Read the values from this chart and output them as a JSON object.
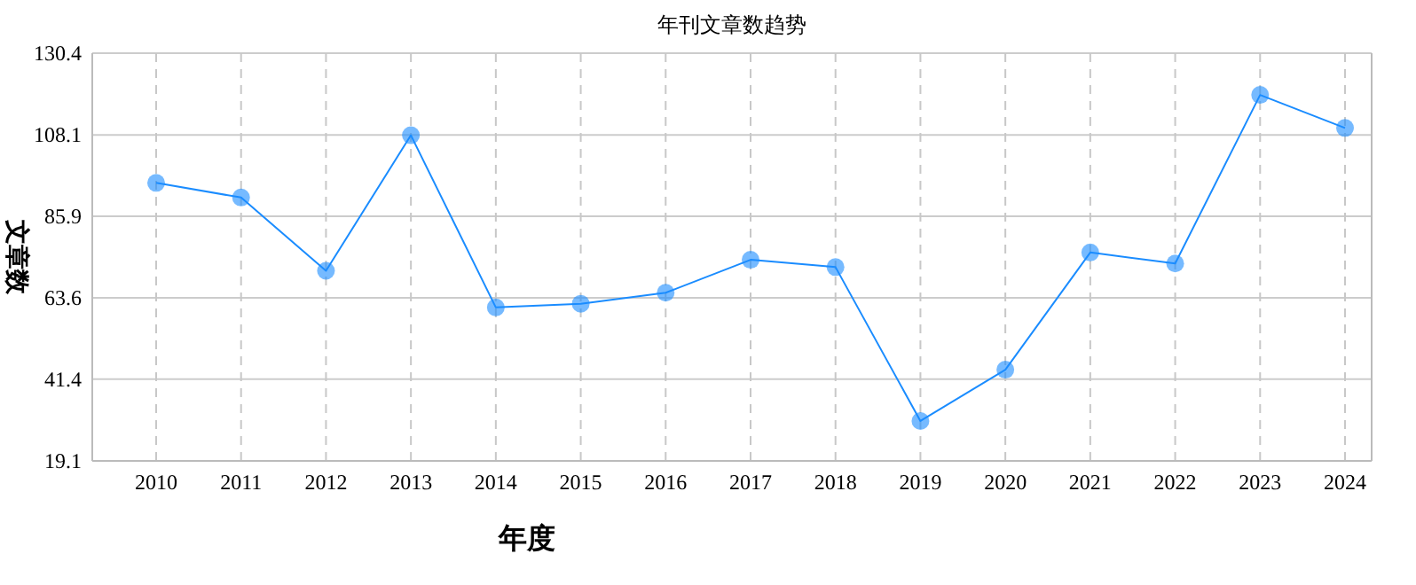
{
  "chart_data": {
    "type": "line",
    "title": "年刊文章数趋势",
    "xlabel": "年度",
    "ylabel": "文章数",
    "categories": [
      "2010",
      "2011",
      "2012",
      "2013",
      "2014",
      "2015",
      "2016",
      "2017",
      "2018",
      "2019",
      "2020",
      "2021",
      "2022",
      "2023",
      "2024"
    ],
    "series": [
      {
        "color": "#1a8cff",
        "values": [
          95,
          91,
          71,
          108,
          61,
          62,
          65,
          74,
          72,
          30,
          44,
          76,
          73,
          119,
          110
        ]
      }
    ],
    "ylim": [
      19.1,
      130.4
    ],
    "yticks": [
      19.1,
      41.4,
      63.6,
      85.9,
      108.1,
      130.4
    ],
    "grid": true,
    "marker": "circle",
    "line_style": "solid"
  }
}
